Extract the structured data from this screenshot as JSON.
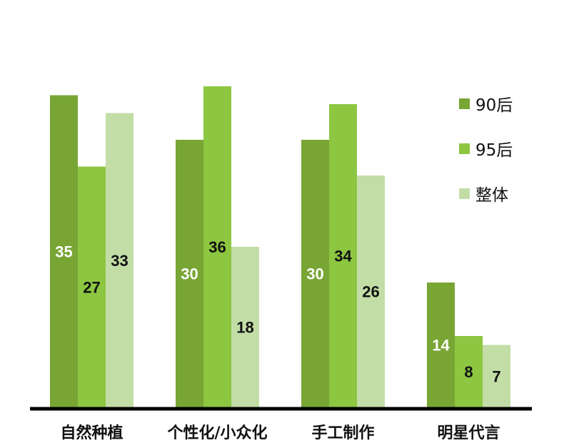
{
  "chart_data": {
    "type": "bar",
    "categories": [
      "自然种植",
      "个性化/小众化",
      "手工制作",
      "明星代言"
    ],
    "series": [
      {
        "name": "90后",
        "values": [
          35,
          30,
          30,
          14
        ],
        "color": "#78A534",
        "label_color": "#ffffff"
      },
      {
        "name": "95后",
        "values": [
          27,
          36,
          34,
          8
        ],
        "color": "#8DC641",
        "label_color": "#111111"
      },
      {
        "name": "整体",
        "values": [
          33,
          18,
          26,
          7
        ],
        "color": "#C3DDA7",
        "label_color": "#111111"
      }
    ],
    "ylim": [
      0,
      36
    ],
    "grid": false,
    "legend": "right",
    "xlabel": "",
    "ylabel": ""
  }
}
